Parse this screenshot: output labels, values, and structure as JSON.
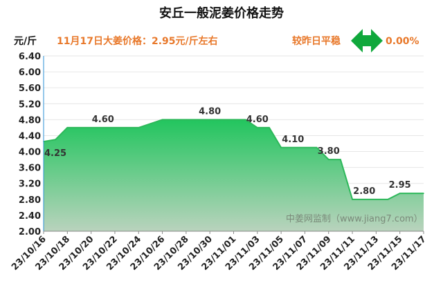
{
  "header": {
    "title": "安丘一般泥姜价格走势",
    "unit": "元/斤",
    "price_note": "11月17日大姜价格：2.95元/斤左右",
    "compare_label": "较昨日平稳",
    "change_value": "0.00%"
  },
  "watermark": "中姜网监制（www.jiang7.com）",
  "colors": {
    "title": "#111111",
    "accent_orange": "#e8782a",
    "line_green": "#2db85a",
    "fill_top": "#22c55e",
    "fill_bottom": "#b9d3bd",
    "arrow_green": "#10a83c",
    "grid": "#e6e6e6",
    "axis_text": "#222222",
    "watermark": "#7a8a7a"
  },
  "icons": {
    "trend": "double-arrow-left-right-icon"
  },
  "chart_data": {
    "type": "area",
    "title": "安丘一般泥姜价格走势",
    "ylabel": "元/斤",
    "xlabel": "",
    "ylim": [
      2.0,
      6.4
    ],
    "yticks": [
      "2.00",
      "2.40",
      "2.80",
      "3.20",
      "3.60",
      "4.00",
      "4.40",
      "4.80",
      "5.20",
      "5.60",
      "6.00",
      "6.40"
    ],
    "xticks": [
      "23/10/16",
      "23/10/18",
      "23/10/20",
      "23/10/22",
      "23/10/24",
      "23/10/26",
      "23/10/28",
      "23/10/30",
      "23/11/01",
      "23/11/03",
      "23/11/05",
      "23/11/07",
      "23/11/09",
      "23/11/11",
      "23/11/13",
      "23/11/15",
      "23/11/17"
    ],
    "x": [
      "23/10/16",
      "23/10/17",
      "23/10/18",
      "23/10/19",
      "23/10/20",
      "23/10/21",
      "23/10/22",
      "23/10/23",
      "23/10/24",
      "23/10/25",
      "23/10/26",
      "23/10/27",
      "23/10/28",
      "23/10/29",
      "23/10/30",
      "23/10/31",
      "23/11/01",
      "23/11/02",
      "23/11/03",
      "23/11/04",
      "23/11/05",
      "23/11/06",
      "23/11/07",
      "23/11/08",
      "23/11/09",
      "23/11/10",
      "23/11/11",
      "23/11/12",
      "23/11/13",
      "23/11/14",
      "23/11/15",
      "23/11/16",
      "23/11/17"
    ],
    "values": [
      4.25,
      4.3,
      4.6,
      4.6,
      4.6,
      4.6,
      4.6,
      4.6,
      4.6,
      4.7,
      4.8,
      4.8,
      4.8,
      4.8,
      4.8,
      4.8,
      4.8,
      4.8,
      4.6,
      4.6,
      4.1,
      4.1,
      4.1,
      4.1,
      3.8,
      3.8,
      2.8,
      2.8,
      2.8,
      2.8,
      2.95,
      2.95,
      2.95
    ],
    "annotations": [
      {
        "x": "23/10/16",
        "label": "4.25"
      },
      {
        "x": "23/10/21",
        "label": "4.60"
      },
      {
        "x": "23/10/30",
        "label": "4.80"
      },
      {
        "x": "23/11/03",
        "label": "4.60"
      },
      {
        "x": "23/11/06",
        "label": "4.10"
      },
      {
        "x": "23/11/09",
        "label": "3.80"
      },
      {
        "x": "23/11/12",
        "label": "2.80"
      },
      {
        "x": "23/11/15",
        "label": "2.95"
      }
    ],
    "grid": true
  }
}
